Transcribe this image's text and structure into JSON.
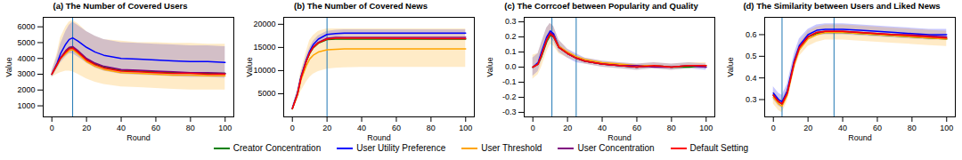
{
  "chart_data": [
    {
      "type": "line",
      "title": "(a) The Number of Covered Users",
      "x_label": "Round",
      "y_label": "Value",
      "x": [
        0,
        3,
        5,
        8,
        10,
        12,
        15,
        20,
        25,
        30,
        40,
        50,
        60,
        70,
        80,
        90,
        100
      ],
      "xlim": [
        -5,
        105
      ],
      "xticks": [
        0,
        20,
        40,
        60,
        80,
        100
      ],
      "ylim": [
        300,
        6600
      ],
      "yticks": [
        1000,
        2000,
        3000,
        4000,
        5000,
        6000
      ],
      "vlines": [
        12
      ],
      "series": [
        {
          "name": "Creator Concentration",
          "color": "#008000",
          "values": [
            3000,
            3600,
            4000,
            4450,
            4650,
            4700,
            4450,
            3950,
            3650,
            3450,
            3250,
            3200,
            3150,
            3100,
            3100,
            3050,
            3050
          ]
        },
        {
          "name": "User Utility Preference",
          "color": "#0000ff",
          "values": [
            3000,
            3700,
            4300,
            4900,
            5200,
            5300,
            5100,
            4700,
            4400,
            4200,
            4000,
            3950,
            3900,
            3850,
            3800,
            3800,
            3750
          ],
          "lower": [
            2800,
            3300,
            3700,
            4100,
            4300,
            4300,
            4100,
            3700,
            3400,
            3200,
            3000,
            2950,
            2900,
            2850,
            2800,
            2800,
            2750
          ],
          "upper": [
            3200,
            4100,
            4900,
            5700,
            6100,
            6300,
            6100,
            5700,
            5400,
            5200,
            5000,
            4950,
            4900,
            4850,
            4800,
            4800,
            4750
          ]
        },
        {
          "name": "User Threshold",
          "color": "#ffa500",
          "values": [
            3000,
            3600,
            4000,
            4300,
            4500,
            4550,
            4300,
            3800,
            3500,
            3300,
            3100,
            3050,
            3000,
            2950,
            2950,
            2900,
            2900
          ],
          "lower": [
            2800,
            3000,
            3100,
            3200,
            3200,
            3150,
            3000,
            2700,
            2500,
            2350,
            2200,
            2150,
            2100,
            2050,
            2000,
            2000,
            2000
          ],
          "upper": [
            3200,
            4300,
            5300,
            6000,
            6300,
            6400,
            6200,
            5700,
            5400,
            5200,
            5100,
            5000,
            5000,
            4950,
            4950,
            4900,
            4900
          ]
        },
        {
          "name": "User Concentration",
          "color": "#800080",
          "values": [
            3000,
            3650,
            4050,
            4500,
            4700,
            4750,
            4500,
            4000,
            3700,
            3500,
            3300,
            3250,
            3200,
            3150,
            3100,
            3100,
            3050
          ]
        },
        {
          "name": "Default Setting",
          "color": "#ff0000",
          "values": [
            3000,
            3600,
            4000,
            4400,
            4600,
            4650,
            4400,
            3900,
            3600,
            3400,
            3200,
            3150,
            3100,
            3050,
            3050,
            3000,
            3000
          ]
        }
      ]
    },
    {
      "type": "line",
      "title": "(b) The Number of Covered News",
      "x_label": "Round",
      "y_label": "Value",
      "x": [
        0,
        3,
        5,
        8,
        10,
        12,
        15,
        20,
        25,
        30,
        40,
        50,
        60,
        70,
        80,
        90,
        100
      ],
      "xlim": [
        -5,
        105
      ],
      "xticks": [
        0,
        20,
        40,
        60,
        80,
        100
      ],
      "ylim": [
        0,
        21500
      ],
      "yticks": [
        5000,
        10000,
        15000,
        20000
      ],
      "vlines": [
        20
      ],
      "series": [
        {
          "name": "Creator Concentration",
          "color": "#008000",
          "values": [
            1800,
            5000,
            8500,
            12000,
            13700,
            14900,
            15900,
            16700,
            16800,
            16800,
            16800,
            16800,
            16800,
            16800,
            16800,
            16800,
            16800
          ]
        },
        {
          "name": "User Utility Preference",
          "color": "#0000ff",
          "values": [
            1800,
            5200,
            8700,
            12300,
            14200,
            15600,
            16800,
            17800,
            18000,
            18100,
            18100,
            18100,
            18100,
            18100,
            18100,
            18100,
            18100
          ],
          "lower": [
            1300,
            4600,
            8000,
            11600,
            13500,
            14900,
            16100,
            17100,
            17300,
            17400,
            17400,
            17400,
            17400,
            17400,
            17400,
            17400,
            17400
          ],
          "upper": [
            2300,
            5800,
            9400,
            13000,
            14900,
            16300,
            17500,
            18500,
            18700,
            18800,
            18800,
            18800,
            18800,
            18800,
            18800,
            18800,
            18800
          ]
        },
        {
          "name": "User Threshold",
          "color": "#ffa500",
          "values": [
            1700,
            4800,
            8000,
            11000,
            12500,
            13300,
            14000,
            14500,
            14600,
            14700,
            14700,
            14700,
            14700,
            14700,
            14700,
            14700,
            14700
          ],
          "lower": [
            1500,
            3500,
            5500,
            7500,
            8500,
            9200,
            9800,
            10300,
            10500,
            10600,
            10700,
            10700,
            10700,
            10700,
            10700,
            10700,
            10700
          ],
          "upper": [
            2000,
            6000,
            10000,
            14000,
            16500,
            17500,
            18500,
            19000,
            19000,
            19000,
            19000,
            19000,
            19000,
            19000,
            19000,
            19000,
            19000
          ]
        },
        {
          "name": "User Concentration",
          "color": "#800080",
          "values": [
            1800,
            5000,
            8500,
            12000,
            13900,
            15100,
            16100,
            17000,
            17200,
            17200,
            17200,
            17200,
            17200,
            17200,
            17200,
            17200,
            17200
          ]
        },
        {
          "name": "Default Setting",
          "color": "#ff0000",
          "values": [
            1800,
            5000,
            8500,
            12000,
            13800,
            15000,
            16000,
            16800,
            17000,
            17000,
            17000,
            17000,
            16950,
            16950,
            16900,
            16900,
            16900
          ]
        }
      ]
    },
    {
      "type": "line",
      "title": "(c) The Corrcoef between Popularity and Quality",
      "x_label": "Round",
      "y_label": "Value",
      "x": [
        0,
        3,
        5,
        8,
        10,
        12,
        15,
        20,
        25,
        30,
        40,
        50,
        60,
        70,
        80,
        90,
        100
      ],
      "xlim": [
        -5,
        105
      ],
      "xticks": [
        0,
        20,
        40,
        60,
        80,
        100
      ],
      "ylim": [
        -0.33,
        0.33
      ],
      "yticks": [
        -0.3,
        -0.2,
        -0.1,
        {
          "value": 0,
          "label": "0.0"
        },
        0.1,
        0.2,
        0.3
      ],
      "vlines": [
        11,
        25
      ],
      "series": [
        {
          "name": "Creator Concentration",
          "color": "#008000",
          "values": [
            0.0,
            0.02,
            0.07,
            0.17,
            0.21,
            0.2,
            0.13,
            0.09,
            0.06,
            0.04,
            0.02,
            0.01,
            0.0,
            0.01,
            0.0,
            0.0,
            0.01
          ]
        },
        {
          "name": "User Utility Preference",
          "color": "#0000ff",
          "values": [
            0.0,
            0.03,
            0.1,
            0.2,
            0.24,
            0.22,
            0.14,
            0.09,
            0.06,
            0.04,
            0.02,
            0.01,
            0.0,
            0.01,
            0.0,
            0.01,
            0.0
          ],
          "lower": [
            -0.06,
            -0.03,
            0.04,
            0.14,
            0.19,
            0.17,
            0.1,
            0.06,
            0.03,
            0.02,
            0.0,
            -0.01,
            -0.02,
            -0.01,
            -0.02,
            -0.01,
            -0.02
          ],
          "upper": [
            0.06,
            0.09,
            0.16,
            0.26,
            0.29,
            0.27,
            0.18,
            0.12,
            0.09,
            0.06,
            0.04,
            0.03,
            0.02,
            0.03,
            0.02,
            0.03,
            0.02
          ]
        },
        {
          "name": "User Threshold",
          "color": "#ffa500",
          "values": [
            0.0,
            0.02,
            0.08,
            0.18,
            0.22,
            0.21,
            0.14,
            0.1,
            0.07,
            0.05,
            0.03,
            0.02,
            0.01,
            0.01,
            0.0,
            0.01,
            0.01
          ],
          "lower": [
            -0.08,
            -0.05,
            0.0,
            0.1,
            0.15,
            0.14,
            0.09,
            0.06,
            0.04,
            0.02,
            0.0,
            -0.01,
            -0.02,
            -0.01,
            -0.02,
            -0.01,
            -0.01
          ],
          "upper": [
            0.08,
            0.09,
            0.16,
            0.26,
            0.29,
            0.27,
            0.18,
            0.12,
            0.08,
            0.06,
            0.04,
            0.03,
            0.02,
            0.03,
            0.02,
            0.03,
            0.03
          ]
        },
        {
          "name": "User Concentration",
          "color": "#800080",
          "values": [
            0.0,
            0.02,
            0.08,
            0.18,
            0.23,
            0.21,
            0.13,
            0.09,
            0.06,
            0.04,
            0.02,
            0.01,
            0.01,
            0.0,
            0.0,
            0.01,
            0.0
          ]
        },
        {
          "name": "Default Setting",
          "color": "#ff0000",
          "values": [
            0.0,
            0.02,
            0.08,
            0.18,
            0.22,
            0.2,
            0.13,
            0.09,
            0.06,
            0.04,
            0.02,
            0.01,
            0.0,
            0.01,
            0.0,
            0.01,
            0.01
          ]
        }
      ]
    },
    {
      "type": "line",
      "title": "(d) The Similarity between Users and Liked News",
      "x_label": "Round",
      "y_label": "Value",
      "x": [
        0,
        3,
        5,
        8,
        10,
        12,
        15,
        20,
        25,
        30,
        40,
        50,
        60,
        70,
        80,
        90,
        100
      ],
      "xlim": [
        -5,
        105
      ],
      "xticks": [
        0,
        20,
        40,
        60,
        80,
        100
      ],
      "ylim": [
        0.22,
        0.68
      ],
      "yticks": [
        0.3,
        0.4,
        0.5,
        0.6
      ],
      "vlines": [
        5,
        35
      ],
      "series": [
        {
          "name": "Creator Concentration",
          "color": "#008000",
          "values": [
            0.32,
            0.29,
            0.28,
            0.33,
            0.4,
            0.47,
            0.54,
            0.59,
            0.605,
            0.61,
            0.61,
            0.605,
            0.6,
            0.595,
            0.59,
            0.585,
            0.58
          ]
        },
        {
          "name": "User Utility Preference",
          "color": "#0000ff",
          "values": [
            0.33,
            0.3,
            0.29,
            0.34,
            0.41,
            0.48,
            0.55,
            0.6,
            0.62,
            0.625,
            0.625,
            0.62,
            0.615,
            0.61,
            0.605,
            0.6,
            0.6
          ],
          "lower": [
            0.3,
            0.27,
            0.26,
            0.31,
            0.38,
            0.45,
            0.52,
            0.575,
            0.595,
            0.6,
            0.6,
            0.595,
            0.59,
            0.585,
            0.58,
            0.575,
            0.575
          ],
          "upper": [
            0.36,
            0.33,
            0.32,
            0.37,
            0.44,
            0.51,
            0.58,
            0.625,
            0.645,
            0.65,
            0.65,
            0.645,
            0.64,
            0.635,
            0.63,
            0.625,
            0.625
          ]
        },
        {
          "name": "User Threshold",
          "color": "#ffa500",
          "values": [
            0.31,
            0.28,
            0.27,
            0.32,
            0.39,
            0.46,
            0.53,
            0.58,
            0.6,
            0.61,
            0.61,
            0.605,
            0.6,
            0.595,
            0.59,
            0.585,
            0.58
          ],
          "lower": [
            0.28,
            0.25,
            0.24,
            0.29,
            0.36,
            0.43,
            0.5,
            0.545,
            0.565,
            0.575,
            0.575,
            0.57,
            0.565,
            0.56,
            0.555,
            0.55,
            0.545
          ],
          "upper": [
            0.34,
            0.31,
            0.3,
            0.35,
            0.42,
            0.49,
            0.56,
            0.615,
            0.635,
            0.645,
            0.645,
            0.64,
            0.635,
            0.63,
            0.625,
            0.62,
            0.615
          ]
        },
        {
          "name": "User Concentration",
          "color": "#800080",
          "values": [
            0.32,
            0.29,
            0.28,
            0.33,
            0.4,
            0.47,
            0.54,
            0.59,
            0.61,
            0.615,
            0.615,
            0.61,
            0.605,
            0.6,
            0.6,
            0.595,
            0.59
          ]
        },
        {
          "name": "Default Setting",
          "color": "#ff0000",
          "values": [
            0.32,
            0.29,
            0.28,
            0.33,
            0.4,
            0.47,
            0.54,
            0.59,
            0.61,
            0.615,
            0.615,
            0.61,
            0.605,
            0.6,
            0.595,
            0.59,
            0.585
          ]
        }
      ]
    }
  ]
}
